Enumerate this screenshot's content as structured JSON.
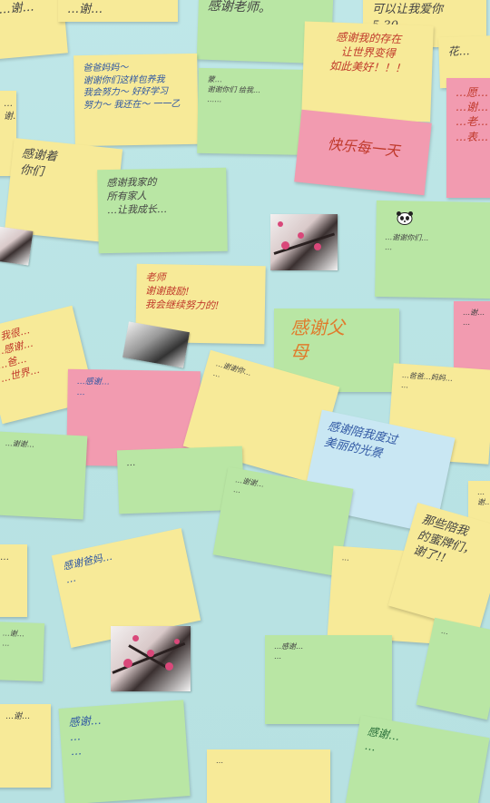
{
  "notes": {
    "n01": "…谢…",
    "n02": "感谢老师。",
    "n03": "可以让我爱你\n5.30",
    "n04": "爸爸妈妈～\n谢谢你们这样包养我\n我会努力～ 好好学习\n努力～ 我还在～ 一一乙",
    "n05": "蒙…\n谢谢你们 给我…\n……",
    "n06": "感谢我的存在\n让世界变得\n如此美好！！！",
    "n07": "花…",
    "n08": "…愿…\n…谢…\n…老…\n…表…",
    "n09": "快乐每一天",
    "n10": "感谢着\n你们",
    "n11": "感谢我家的\n所有家人\n…让我成长…",
    "n12": "…谢谢你们…\n…",
    "n13": "老师\n谢谢鼓励!\n我会继续努力的!",
    "n14": "感谢父\n母",
    "n15": "…谢…\n…",
    "n16": "…我很…\n…感谢…\n…爸…\n…世界…",
    "n17": "…爸爸…妈妈…\n…",
    "n18": "…感谢…\n…",
    "n19": "感谢陪我度过\n美丽的光景",
    "n20": "…谢谢你…\n…",
    "n21": "…谢谢…",
    "n22": "感谢爸妈…\n…",
    "n23": "…",
    "n24": "…谢谢…\n…",
    "n25": "那些陪我\n的蜜牌们，\n谢了!!",
    "n26": "…谢…",
    "n27": "…",
    "n28": "感谢爸爸、妈妈\n…\n…",
    "n29": "…",
    "n30": "…谢…\n…",
    "n31": "…感谢…\n…",
    "n32": "…",
    "n33": "感谢…\n…\n…",
    "n34": "感谢…\n…",
    "n35": "…谢…",
    "n36": "…",
    "n37": "…",
    "n38": "…",
    "n39": "感谢…\n…",
    "n40": "…",
    "n41": "…"
  },
  "photo_subject": "plum blossom with snow",
  "panda_icon": "panda-icon"
}
